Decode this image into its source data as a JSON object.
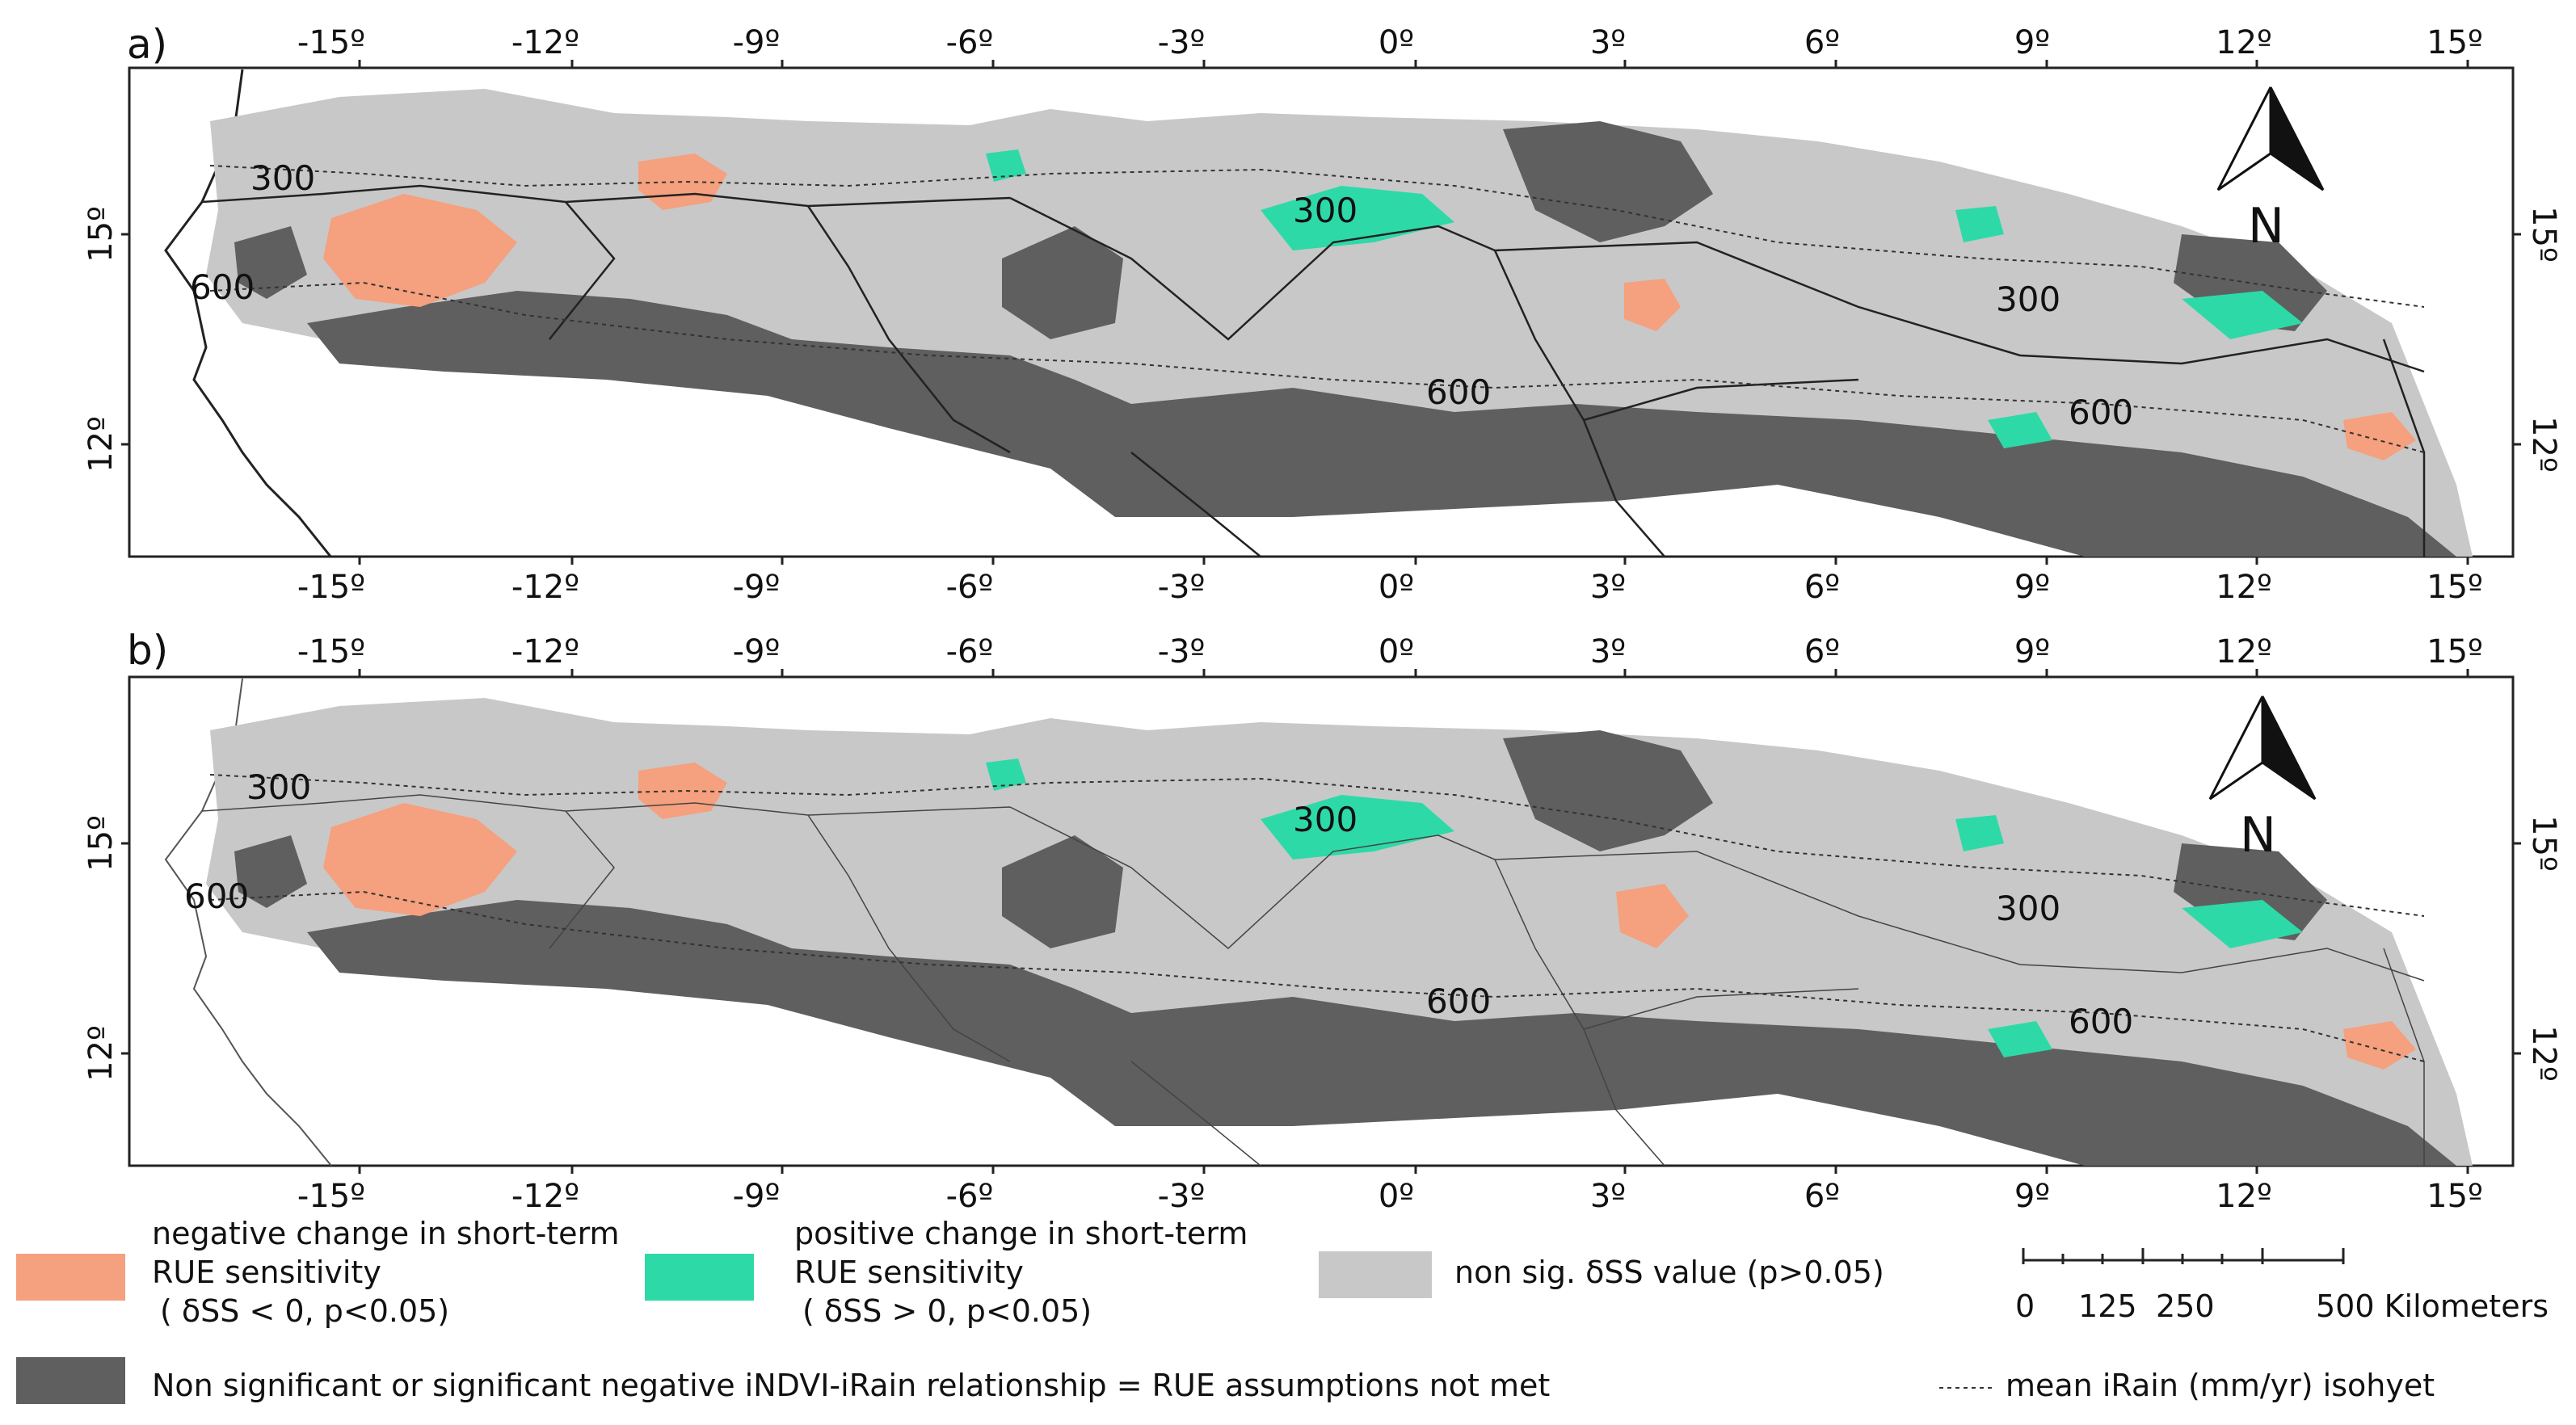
{
  "panels": [
    {
      "label": "a)",
      "top_ticks": [
        "-15º",
        "-12º",
        "-9º",
        "-6º",
        "-3º",
        "0º",
        "3º",
        "6º",
        "9º",
        "12º",
        "15º"
      ],
      "bottom_ticks": [
        "-15º",
        "-12º",
        "-9º",
        "-6º",
        "-3º",
        "0º",
        "3º",
        "6º",
        "9º",
        "12º",
        "15º"
      ],
      "left_ticks": [
        "15º",
        "12º"
      ],
      "right_ticks": [
        "15º",
        "12º"
      ],
      "isohyet_labels": [
        "300",
        "600",
        "300",
        "600",
        "300",
        "600"
      ],
      "north_label": "N"
    },
    {
      "label": "b)",
      "top_ticks": [
        "-15º",
        "-12º",
        "-9º",
        "-6º",
        "-3º",
        "0º",
        "3º",
        "6º",
        "9º",
        "12º",
        "15º"
      ],
      "bottom_ticks": [
        "-15º",
        "-12º",
        "-9º",
        "-6º",
        "-3º",
        "0º",
        "3º",
        "6º",
        "9º",
        "12º",
        "15º"
      ],
      "left_ticks": [
        "15º",
        "12º"
      ],
      "right_ticks": [
        "15º",
        "12º"
      ],
      "isohyet_labels": [
        "300",
        "600",
        "300",
        "600",
        "300",
        "600"
      ],
      "north_label": "N"
    }
  ],
  "legend": {
    "negative": {
      "line1": "negative change in short-term",
      "line2": "RUE sensitivity",
      "line3": "( δSS < 0, p<0.05)",
      "color": "#f5a07e"
    },
    "positive": {
      "line1": "positive change in short-term",
      "line2": "RUE sensitivity",
      "line3": "( δSS > 0, p<0.05)",
      "color": "#2ed9a8"
    },
    "nonsig": {
      "text": "non sig. δSS value (p>0.05)",
      "color": "#c8c8c8"
    },
    "not_met": {
      "text": "Non significant or significant negative iNDVI-iRain relationship = RUE assumptions not met",
      "color": "#5f5f5f"
    },
    "scalebar": {
      "ticks": [
        "0",
        "125",
        "250",
        "500 Kilometers"
      ]
    },
    "isohyet": {
      "text": "mean iRain (mm/yr) isohyet"
    }
  }
}
